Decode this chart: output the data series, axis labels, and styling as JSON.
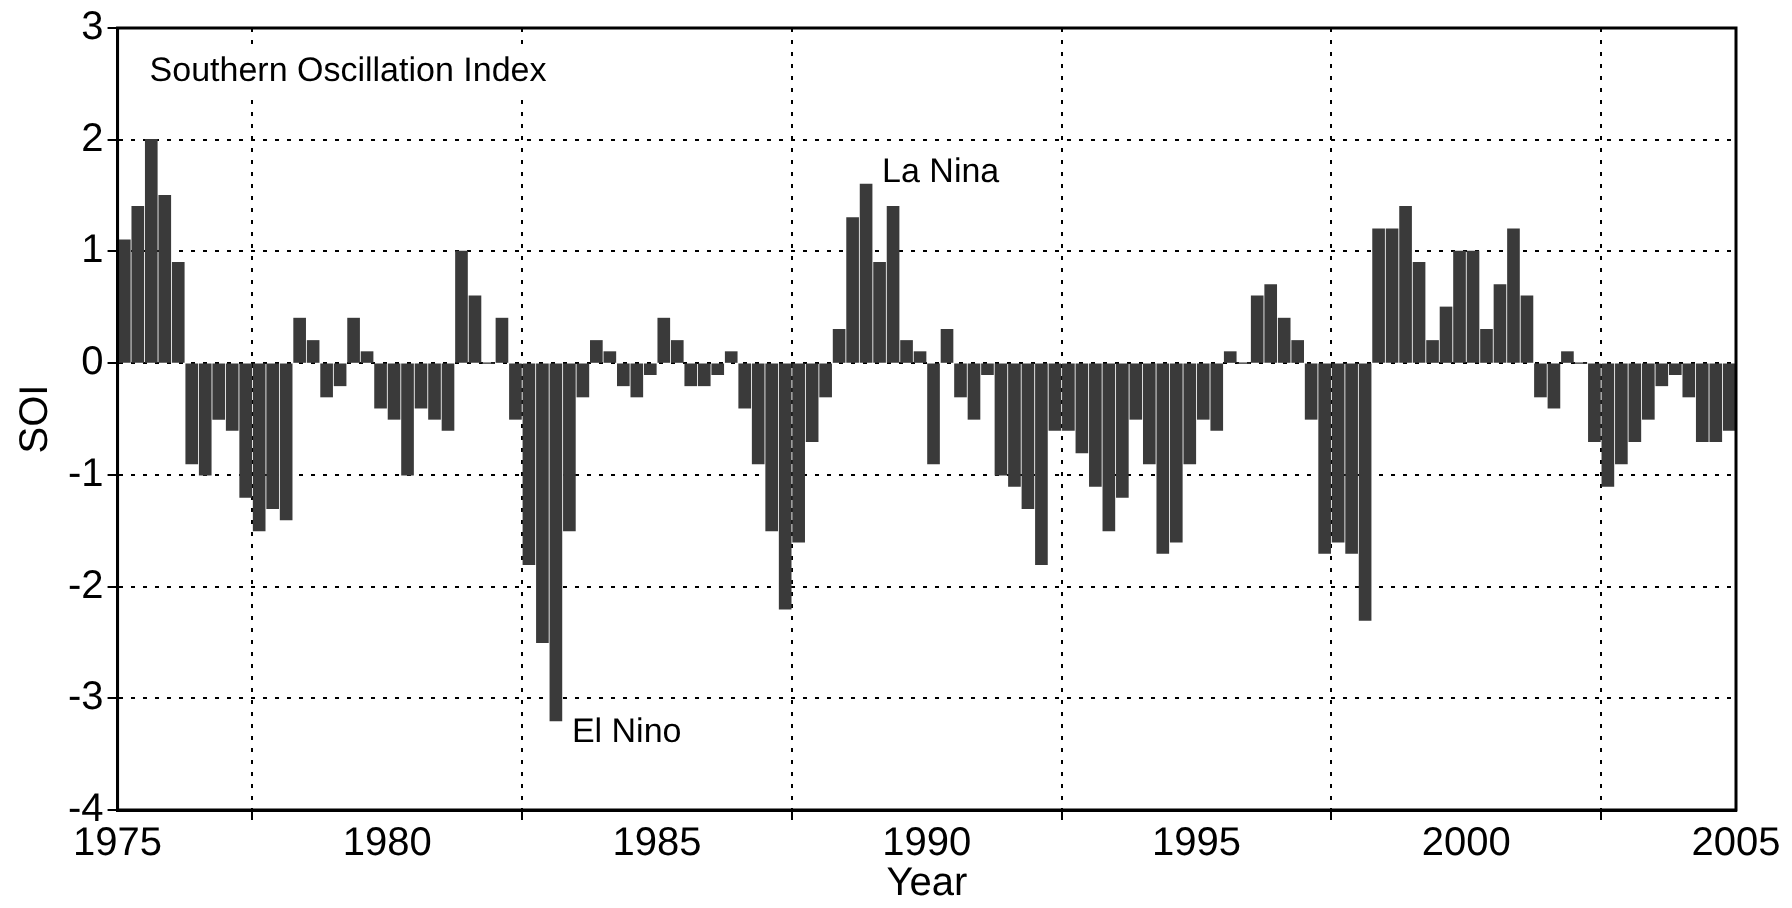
{
  "chart_data": {
    "type": "bar",
    "xlabel": "Year",
    "ylabel": "SOI",
    "annotations": [
      "Southern Oscillation Index",
      {
        "text": "La Nina",
        "x": 1988.875,
        "y": 1.6
      },
      {
        "text": "El Nino",
        "x": 1983.125,
        "y": -3.2
      }
    ],
    "x": [
      1975.125,
      1975.375,
      1975.625,
      1975.875,
      1976.125,
      1976.375,
      1976.625,
      1976.875,
      1977.125,
      1977.375,
      1977.625,
      1977.875,
      1978.125,
      1978.375,
      1978.625,
      1978.875,
      1979.125,
      1979.375,
      1979.625,
      1979.875,
      1980.125,
      1980.375,
      1980.625,
      1980.875,
      1981.125,
      1981.375,
      1981.625,
      1981.875,
      1982.125,
      1982.375,
      1982.625,
      1982.875,
      1983.125,
      1983.375,
      1983.625,
      1983.875,
      1984.125,
      1984.375,
      1984.625,
      1984.875,
      1985.125,
      1985.375,
      1985.625,
      1985.875,
      1986.125,
      1986.375,
      1986.625,
      1986.875,
      1987.125,
      1987.375,
      1987.625,
      1987.875,
      1988.125,
      1988.375,
      1988.625,
      1988.875,
      1989.125,
      1989.375,
      1989.625,
      1989.875,
      1990.125,
      1990.375,
      1990.625,
      1990.875,
      1991.125,
      1991.375,
      1991.625,
      1991.875,
      1992.125,
      1992.375,
      1992.625,
      1992.875,
      1993.125,
      1993.375,
      1993.625,
      1993.875,
      1994.125,
      1994.375,
      1994.625,
      1994.875,
      1995.125,
      1995.375,
      1995.625,
      1995.875,
      1996.125,
      1996.375,
      1996.625,
      1996.875,
      1997.125,
      1997.375,
      1997.625,
      1997.875,
      1998.125,
      1998.375,
      1998.625,
      1998.875,
      1999.125,
      1999.375,
      1999.625,
      1999.875,
      2000.125,
      2000.375,
      2000.625,
      2000.875,
      2001.125,
      2001.375,
      2001.625,
      2001.875,
      2002.125,
      2002.375,
      2002.625,
      2002.875,
      2003.125,
      2003.375,
      2003.625,
      2003.875,
      2004.125,
      2004.375,
      2004.625,
      2004.875
    ],
    "values": [
      1.1,
      1.4,
      2.0,
      1.5,
      0.9,
      -0.9,
      -1.0,
      -0.5,
      -0.6,
      -1.2,
      -1.5,
      -1.3,
      -1.4,
      0.4,
      0.2,
      -0.3,
      -0.2,
      0.4,
      0.1,
      -0.4,
      -0.5,
      -1.0,
      -0.4,
      -0.5,
      -0.6,
      1.0,
      0.6,
      0.0,
      0.4,
      -0.5,
      -1.8,
      -2.5,
      -3.2,
      -1.5,
      -0.3,
      0.2,
      0.1,
      -0.2,
      -0.3,
      -0.1,
      0.4,
      0.2,
      -0.2,
      -0.2,
      -0.1,
      0.1,
      -0.4,
      -0.9,
      -1.5,
      -2.2,
      -1.6,
      -0.7,
      -0.3,
      0.3,
      1.3,
      1.6,
      0.9,
      1.4,
      0.2,
      0.1,
      -0.9,
      0.3,
      -0.3,
      -0.5,
      -0.1,
      -1.0,
      -1.1,
      -1.3,
      -1.8,
      -0.6,
      -0.6,
      -0.8,
      -1.1,
      -1.5,
      -1.2,
      -0.5,
      -0.9,
      -1.7,
      -1.6,
      -0.9,
      -0.5,
      -0.6,
      0.1,
      0.0,
      0.6,
      0.7,
      0.4,
      0.2,
      -0.5,
      -1.7,
      -1.6,
      -1.7,
      -2.3,
      1.2,
      1.2,
      1.4,
      0.9,
      0.2,
      0.5,
      1.0,
      1.0,
      0.3,
      0.7,
      1.2,
      0.6,
      -0.3,
      -0.4,
      0.1,
      0.0,
      -0.7,
      -1.1,
      -0.9,
      -0.7,
      -0.5,
      -0.2,
      -0.1,
      -0.3,
      -0.7,
      -0.7,
      -0.6
    ],
    "color": "#3a3a3a",
    "xlim": [
      1975,
      2005
    ],
    "xticks": [
      1975,
      1980,
      1985,
      1990,
      1995,
      2000,
      2005
    ],
    "ylim": [
      -4,
      3
    ],
    "yticks": [
      -4,
      -3,
      -2,
      -1,
      0,
      1,
      2,
      3
    ],
    "grid": true
  }
}
